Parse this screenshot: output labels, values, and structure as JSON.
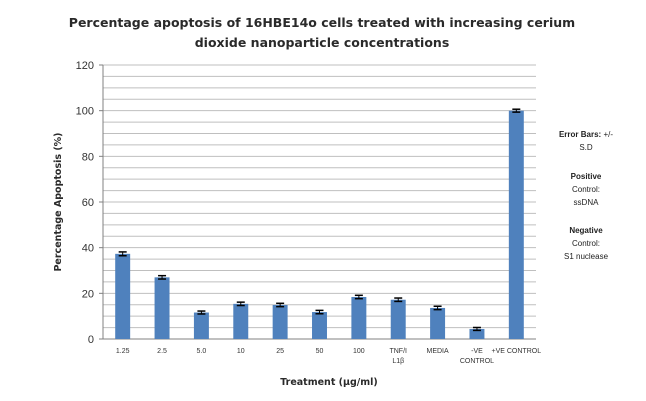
{
  "chart_data": {
    "type": "bar",
    "title": "Percentage apoptosis of 16HBE14o cells treated with increasing cerium dioxide nanoparticle concentrations",
    "title_lines": [
      "Percentage apoptosis of 16HBE14o cells treated with increasing cerium",
      "dioxide nanoparticle concentrations"
    ],
    "xlabel": "Treatment (µg/ml)",
    "ylabel": "Percentage Apoptosis  (%)",
    "ylim": [
      0,
      120
    ],
    "yticks": [
      0,
      20,
      40,
      60,
      80,
      100,
      120
    ],
    "grid": true,
    "categories": [
      "1.25",
      "2.5",
      "5.0",
      "10",
      "25",
      "50",
      "100",
      "TNF/IL1β",
      "MEDIA",
      "-VE CONTROL",
      "+VE CONTROL"
    ],
    "category_label_lines": [
      [
        "1.25"
      ],
      [
        "2.5"
      ],
      [
        "5.0"
      ],
      [
        "10"
      ],
      [
        "25"
      ],
      [
        "50"
      ],
      [
        "100"
      ],
      [
        "TNF/I",
        "L1β"
      ],
      [
        "MEDIA"
      ],
      [
        "-VE",
        "CONTROL"
      ],
      [
        "+VE CONTROL"
      ]
    ],
    "values": [
      37.3,
      27.0,
      11.6,
      15.4,
      14.9,
      11.8,
      18.4,
      17.2,
      13.6,
      4.4,
      100.0
    ],
    "errors": [
      0.4,
      0.3,
      0.2,
      0.3,
      0.3,
      0.3,
      0.3,
      0.3,
      0.3,
      0.2,
      0.2
    ],
    "bar_color": "#4f81bd",
    "error_color": "#000000"
  },
  "notes": {
    "error_bars_label": "Error Bars:",
    "error_bars_value_1": "+/-",
    "error_bars_value_2": "S.D",
    "positive_label": "Positive",
    "positive_label_2": "Control:",
    "positive_value": "ssDNA",
    "negative_label": "Negative",
    "negative_label_2": "Control:",
    "negative_value": "S1 nuclease"
  }
}
